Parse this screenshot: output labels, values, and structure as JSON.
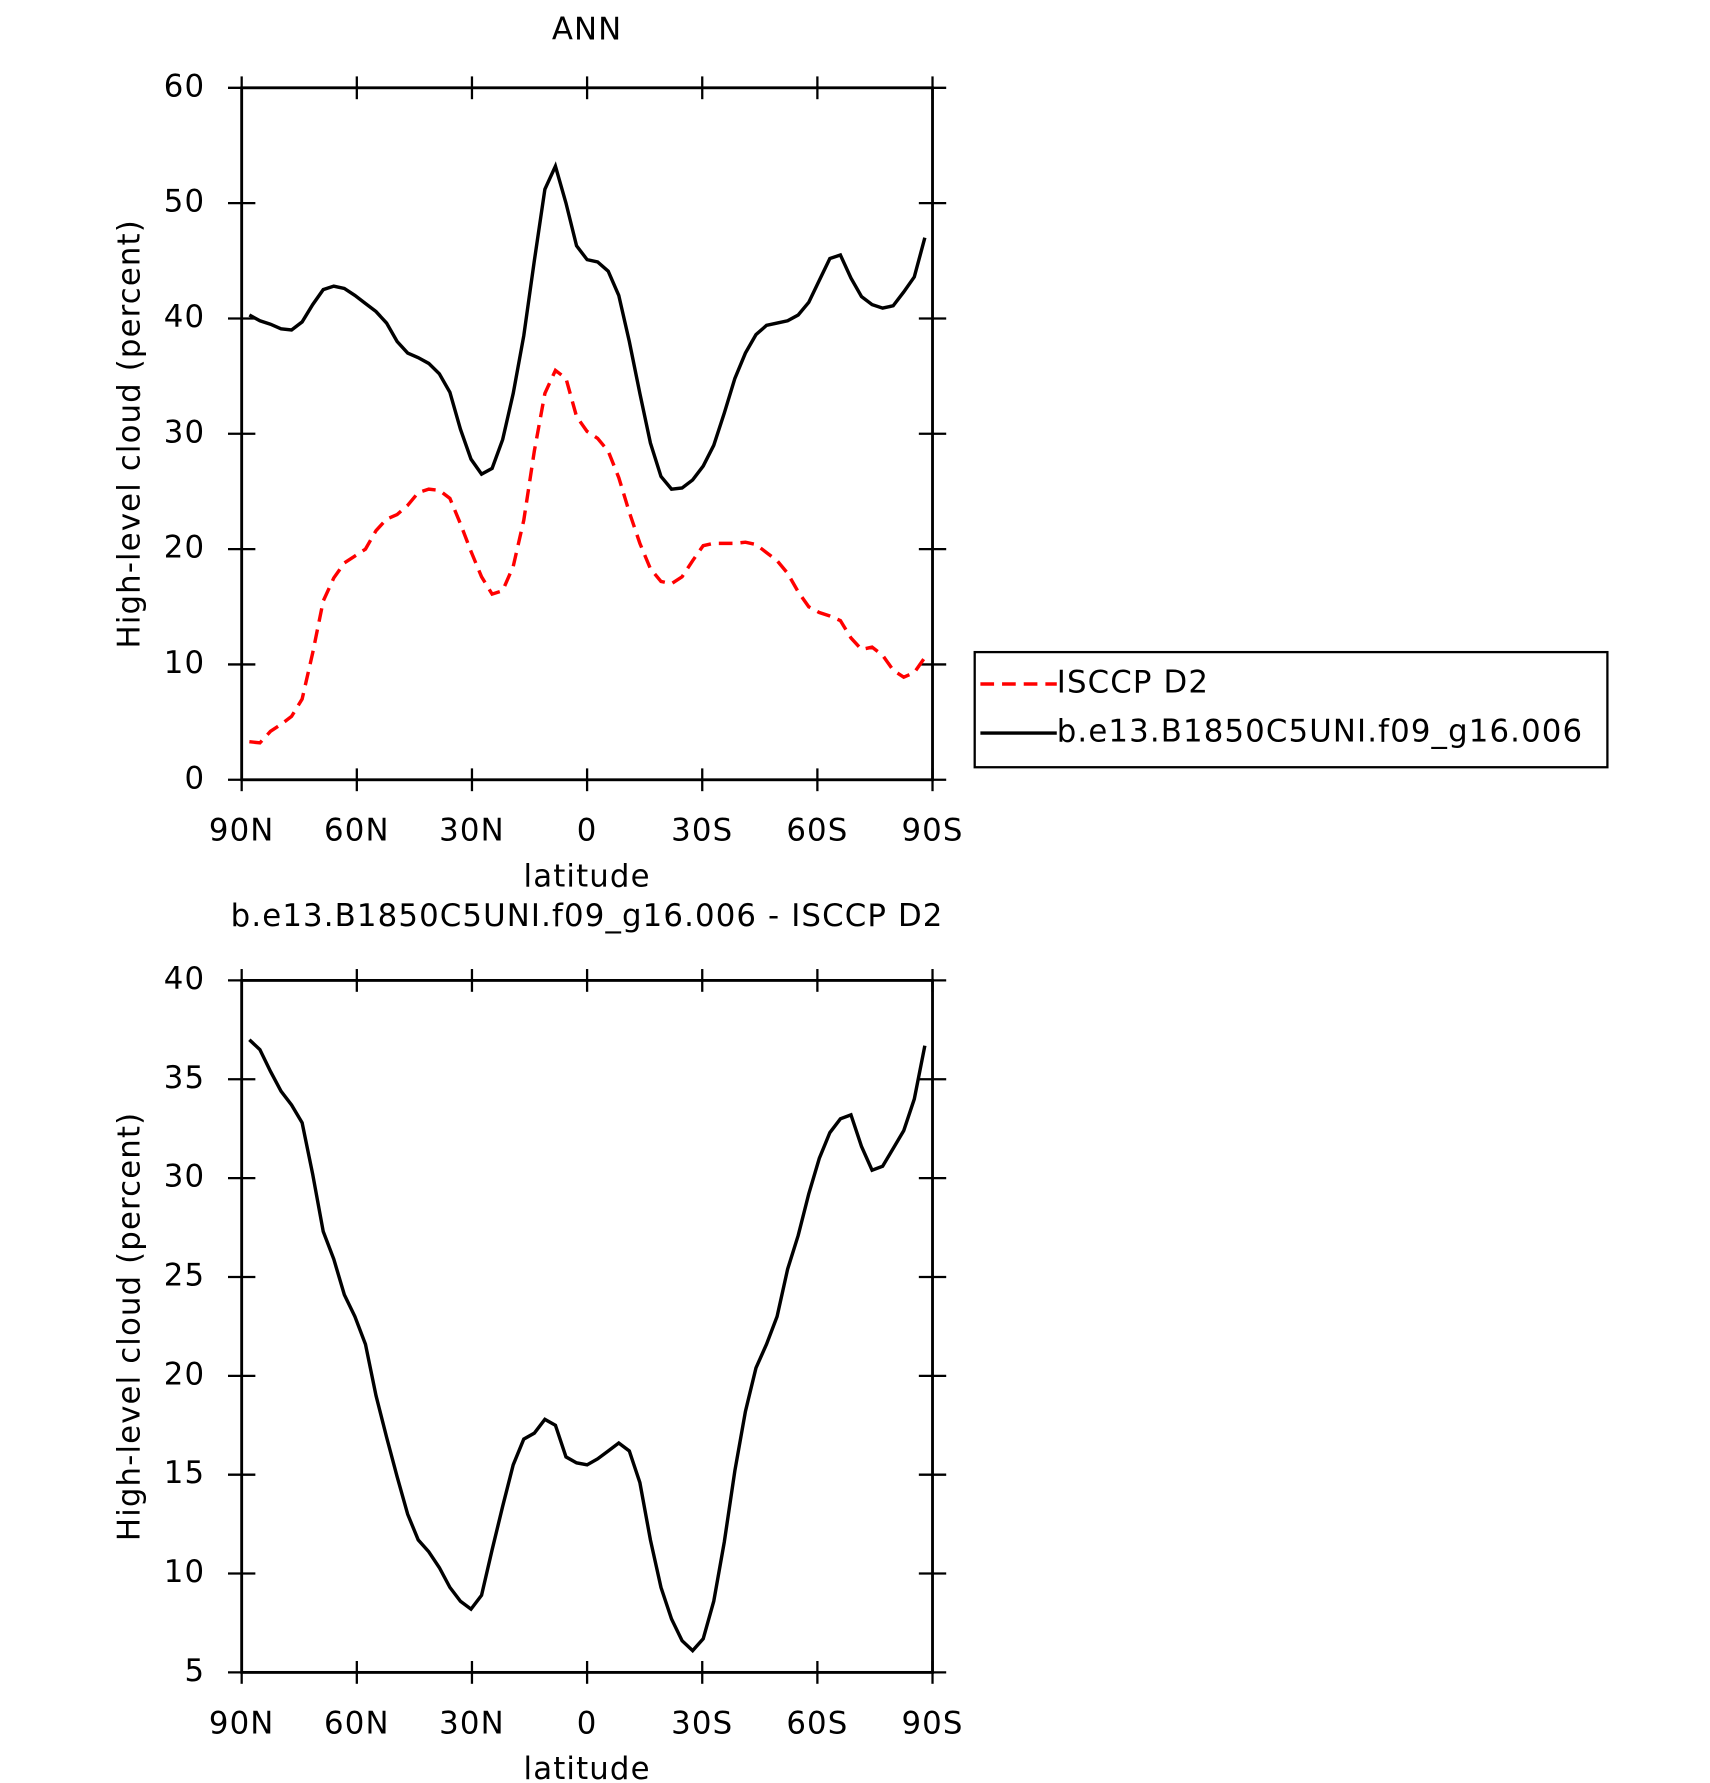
{
  "chart_data": [
    {
      "type": "line",
      "title": "ANN",
      "xlabel": "latitude",
      "ylabel": "High-level cloud (percent)",
      "x": [
        88,
        85.25,
        82.5,
        79.75,
        77,
        74.25,
        71.5,
        68.75,
        66,
        63.25,
        60.5,
        57.75,
        55,
        52.25,
        49.5,
        46.75,
        44,
        41.25,
        38.5,
        35.75,
        33,
        30.25,
        27.5,
        24.75,
        22,
        19.25,
        16.5,
        13.75,
        11,
        8.25,
        5.5,
        2.75,
        0,
        -2.75,
        -5.5,
        -8.25,
        -11,
        -13.75,
        -16.5,
        -19.25,
        -22,
        -24.75,
        -27.5,
        -30.25,
        -33,
        -35.75,
        -38.5,
        -41.25,
        -44,
        -46.75,
        -49.5,
        -52.25,
        -55,
        -57.75,
        -60.5,
        -63.25,
        -66,
        -68.75,
        -71.5,
        -74.25,
        -77,
        -79.75,
        -82.5,
        -85.25,
        -88
      ],
      "series": [
        {
          "name": "ISCCP D2",
          "color": "#ff0000",
          "dashed": true,
          "values": [
            3.3,
            3.2,
            4.2,
            4.8,
            5.5,
            7.0,
            11,
            15.5,
            17.5,
            18.8,
            19.4,
            20.0,
            21.6,
            22.6,
            23.0,
            23.8,
            24.9,
            25.2,
            25.1,
            24.4,
            22.2,
            19.8,
            17.6,
            16.1,
            16.4,
            18.5,
            22.5,
            28.5,
            33.5,
            35.5,
            34.8,
            31.5,
            30.2,
            29.6,
            28.5,
            26.2,
            23.2,
            20.5,
            18.3,
            17.2,
            17.0,
            17.6,
            19.0,
            20.3,
            20.5,
            20.5,
            20.5,
            20.6,
            20.4,
            19.7,
            19.0,
            17.9,
            16.3,
            15.0,
            14.5,
            14.2,
            13.8,
            12.3,
            11.3,
            11.5,
            10.8,
            9.5,
            8.9,
            9.3,
            10.6
          ]
        },
        {
          "name": "b.e13.B1850C5UNI.f09_g16.006",
          "color": "#000000",
          "dashed": false,
          "values": [
            40.3,
            39.8,
            39.5,
            39.1,
            39.0,
            39.7,
            41.2,
            42.5,
            42.8,
            42.6,
            42.0,
            41.3,
            40.6,
            39.6,
            38.0,
            37.0,
            36.6,
            36.1,
            35.2,
            33.6,
            30.4,
            27.8,
            26.5,
            27.0,
            29.5,
            33.5,
            38.5,
            45.0,
            51.2,
            53.2,
            50.0,
            46.3,
            45.1,
            44.9,
            44.1,
            42.0,
            38.0,
            33.5,
            29.2,
            26.3,
            25.2,
            25.3,
            26.0,
            27.2,
            29.0,
            31.8,
            34.8,
            37.0,
            38.6,
            39.4,
            39.6,
            39.8,
            40.3,
            41.4,
            43.3,
            45.2,
            45.5,
            43.5,
            41.9,
            41.2,
            40.9,
            41.1,
            42.3,
            43.6,
            47.0
          ]
        }
      ],
      "xlim": [
        90,
        -90
      ],
      "xticks": [
        {
          "value": 90,
          "label": "90N"
        },
        {
          "value": 60,
          "label": "60N"
        },
        {
          "value": 30,
          "label": "30N"
        },
        0,
        {
          "value": -30,
          "label": "30S"
        },
        {
          "value": -60,
          "label": "60S"
        },
        {
          "value": -90,
          "label": "90S"
        }
      ],
      "ylim": [
        0,
        60
      ],
      "yticks": [
        0,
        10,
        20,
        30,
        40,
        50,
        60
      ],
      "legend": "right"
    },
    {
      "type": "line",
      "title": "b.e13.B1850C5UNI.f09_g16.006 - ISCCP D2",
      "xlabel": "latitude",
      "ylabel": "High-level cloud (percent)",
      "x": [
        88,
        85.25,
        82.5,
        79.75,
        77,
        74.25,
        71.5,
        68.75,
        66,
        63.25,
        60.5,
        57.75,
        55,
        52.25,
        49.5,
        46.75,
        44,
        41.25,
        38.5,
        35.75,
        33,
        30.25,
        27.5,
        24.75,
        22,
        19.25,
        16.5,
        13.75,
        11,
        8.25,
        5.5,
        2.75,
        0,
        -2.75,
        -5.5,
        -8.25,
        -11,
        -13.75,
        -16.5,
        -19.25,
        -22,
        -24.75,
        -27.5,
        -30.25,
        -33,
        -35.75,
        -38.5,
        -41.25,
        -44,
        -46.75,
        -49.5,
        -52.25,
        -55,
        -57.75,
        -60.5,
        -63.25,
        -66,
        -68.75,
        -71.5,
        -74.25,
        -77,
        -79.75,
        -82.5,
        -85.25,
        -88
      ],
      "series": [
        {
          "color": "#000000",
          "dashed": false,
          "values": [
            37.0,
            36.5,
            35.4,
            34.4,
            33.7,
            32.8,
            30.2,
            27.3,
            25.9,
            24.1,
            23.0,
            21.6,
            19.0,
            16.9,
            14.9,
            13.0,
            11.7,
            11.1,
            10.3,
            9.3,
            8.6,
            8.2,
            8.9,
            11.2,
            13.4,
            15.5,
            16.8,
            17.1,
            17.8,
            17.5,
            15.9,
            15.6,
            15.5,
            15.8,
            16.2,
            16.6,
            16.2,
            14.6,
            11.7,
            9.3,
            7.7,
            6.6,
            6.1,
            6.7,
            8.6,
            11.6,
            15.2,
            18.2,
            20.4,
            21.6,
            23.0,
            25.4,
            27.1,
            29.2,
            31.0,
            32.3,
            33.0,
            33.2,
            31.6,
            30.4,
            30.6,
            31.5,
            32.4,
            34.0,
            36.7
          ]
        }
      ],
      "xlim": [
        90,
        -90
      ],
      "xticks": [
        {
          "value": 90,
          "label": "90N"
        },
        {
          "value": 60,
          "label": "60N"
        },
        {
          "value": 30,
          "label": "30N"
        },
        0,
        {
          "value": -30,
          "label": "30S"
        },
        {
          "value": -60,
          "label": "60S"
        },
        {
          "value": -90,
          "label": "90S"
        }
      ],
      "ylim": [
        5,
        40
      ],
      "yticks": [
        5,
        10,
        15,
        20,
        25,
        30,
        35,
        40
      ]
    }
  ]
}
